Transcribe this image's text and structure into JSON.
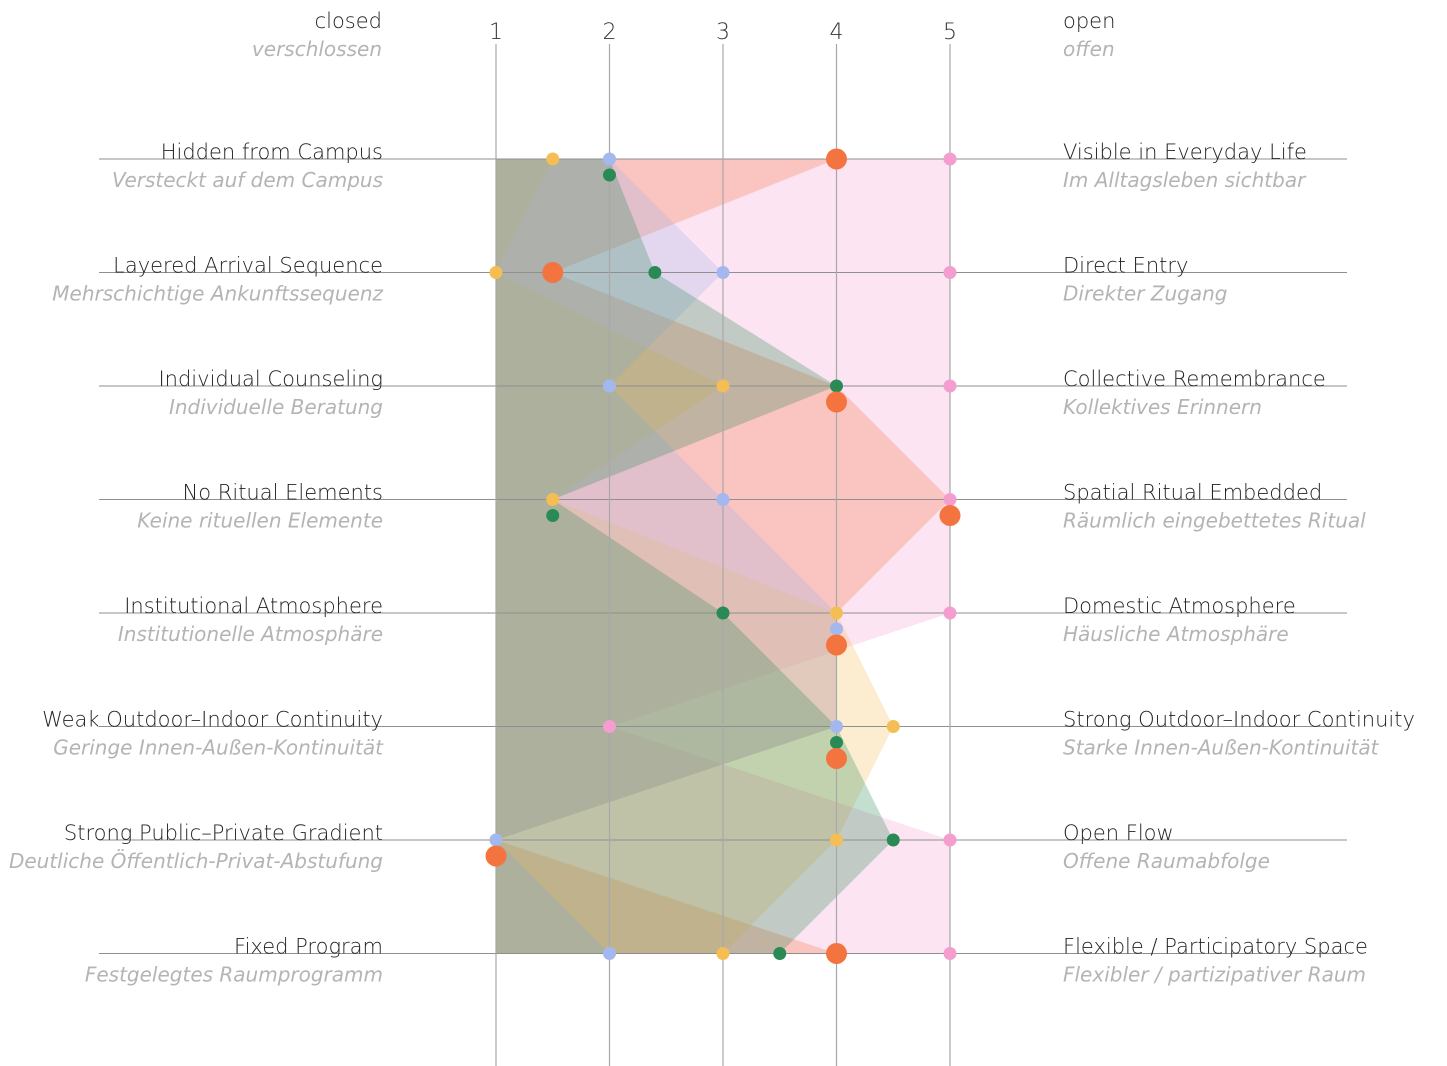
{
  "chart_data": {
    "type": "parallel-scale",
    "x_ticks": [
      "1",
      "2",
      "3",
      "4",
      "5"
    ],
    "xlim": [
      1,
      5
    ],
    "grid": true,
    "header": {
      "left": {
        "en": "closed",
        "de": "verschlossen"
      },
      "right": {
        "en": "open",
        "de": "offen"
      }
    },
    "rows": [
      {
        "left_en": "Hidden from Campus",
        "left_de": "Versteckt auf dem Campus",
        "right_en": "Visible in Everyday Life",
        "right_de": "Im Alltagsleben sichtbar"
      },
      {
        "left_en": "Layered Arrival Sequence",
        "left_de": "Mehrschichtige Ankunftssequenz",
        "right_en": "Direct Entry",
        "right_de": "Direkter Zugang"
      },
      {
        "left_en": "Individual Counseling",
        "left_de": "Individuelle Beratung",
        "right_en": "Collective Remembrance",
        "right_de": "Kollektives Erinnern"
      },
      {
        "left_en": "No Ritual Elements",
        "left_de": "Keine rituellen Elemente",
        "right_en": "Spatial Ritual Embedded",
        "right_de": "Räumlich eingebettetes Ritual"
      },
      {
        "left_en": "Institutional Atmosphere",
        "left_de": "Institutionelle Atmosphäre",
        "right_en": "Domestic Atmosphere",
        "right_de": "Häusliche Atmosphäre"
      },
      {
        "left_en": "Weak Outdoor–Indoor Continuity",
        "left_de": "Geringe Innen-Außen-Kontinuität",
        "right_en": "Strong Outdoor–Indoor Continuity",
        "right_de": "Starke Innen-Außen-Kontinuität"
      },
      {
        "left_en": "Strong Public–Private Gradient",
        "left_de": "Deutliche Öffentlich-Privat-Abstufung",
        "right_en": "Open Flow",
        "right_de": "Offene Raumabfolge"
      },
      {
        "left_en": "Fixed Program",
        "left_de": "Festgelegtes Raumprogramm",
        "right_en": "Flexible / Participatory Space",
        "right_de": "Flexibler / partizipativer Raum"
      }
    ],
    "series": [
      {
        "color": "#c9ab96",
        "values": [
          1,
          1,
          1,
          1,
          1,
          1,
          1,
          1
        ],
        "marker": false
      },
      {
        "color": "#f49ed0",
        "values": [
          5,
          5,
          5,
          5,
          5,
          2,
          5,
          5
        ],
        "marker": true,
        "marker_size": "small"
      },
      {
        "color": "#f4743f",
        "values": [
          4,
          1.5,
          4,
          5,
          4,
          4,
          1,
          4
        ],
        "marker": true,
        "marker_size": "large"
      },
      {
        "color": "#f5be55",
        "values": [
          1.5,
          1,
          3,
          1.5,
          4,
          4.5,
          4,
          3
        ],
        "marker": true,
        "marker_size": "small"
      },
      {
        "color": "#a3b8ee",
        "values": [
          2,
          3,
          2,
          3,
          4,
          4,
          1,
          2
        ],
        "marker": true,
        "marker_size": "small"
      },
      {
        "color": "#2a8a55",
        "values": [
          2,
          2.4,
          4,
          1.5,
          3,
          4,
          4.5,
          3.5
        ],
        "marker": true,
        "marker_size": "small"
      }
    ]
  }
}
